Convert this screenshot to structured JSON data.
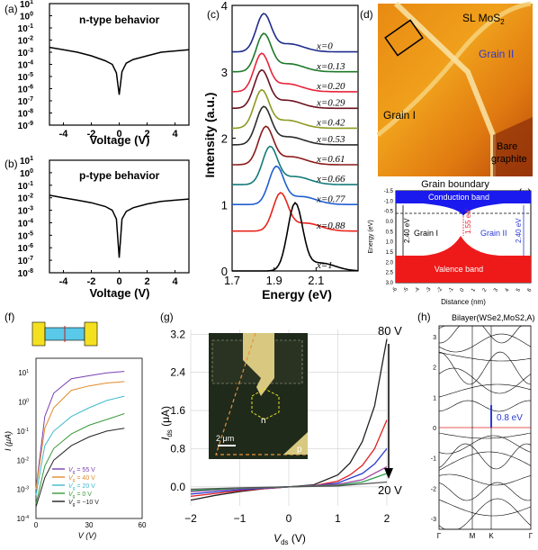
{
  "panels": {
    "a": {
      "label": "(a)",
      "title": "n-type behavior",
      "xlabel": "Voltage (V)",
      "xticks": [
        "-4",
        "-2",
        "0",
        "2",
        "4"
      ],
      "yticks": [
        "10",
        "10",
        "10",
        "10",
        "10",
        "10",
        "10",
        "10",
        "10",
        "10",
        "10"
      ],
      "yexp": [
        "1",
        "0",
        "-1",
        "-2",
        "-3",
        "-4",
        "-5",
        "-6",
        "-7",
        "-8",
        "-9"
      ]
    },
    "b": {
      "label": "(b)",
      "title": "p-type behavior",
      "xlabel": "Voltage (V)",
      "xticks": [
        "-4",
        "-2",
        "0",
        "2",
        "4"
      ],
      "yticks": [
        "10",
        "10",
        "10",
        "10",
        "10",
        "10",
        "10",
        "10",
        "10",
        "10"
      ],
      "yexp": [
        "1",
        "0",
        "-1",
        "-2",
        "-3",
        "-4",
        "-5",
        "-6",
        "-7",
        "-8"
      ]
    },
    "c": {
      "label": "(c)",
      "ylabel": "Intensity (a.u.)",
      "xlabel": "Energy (eV)",
      "xticks": [
        "1.7",
        "1.9",
        "2.1"
      ],
      "yticks": [
        "0",
        "1",
        "2",
        "3",
        "4"
      ],
      "curves": [
        {
          "name": "x=0",
          "color": "#1f2b8c"
        },
        {
          "name": "x=0.13",
          "color": "#1e7a2a"
        },
        {
          "name": "x=0.20",
          "color": "#e8253a"
        },
        {
          "name": "x=0.29",
          "color": "#6b1220"
        },
        {
          "name": "x=0.42",
          "color": "#8e9a20"
        },
        {
          "name": "x=0.53",
          "color": "#2c2c2c"
        },
        {
          "name": "x=0.61",
          "color": "#8a1a1a"
        },
        {
          "name": "x=0.66",
          "color": "#147a7a"
        },
        {
          "name": "x=0.77",
          "color": "#1e5fd0"
        },
        {
          "name": "x=0.88",
          "color": "#e8251a"
        },
        {
          "name": "x=1",
          "color": "#000000"
        }
      ]
    },
    "d": {
      "label": "(d)",
      "top_label": "SL MoS",
      "top_sub": "2",
      "grain2": "Grain II",
      "grain1": "Grain I",
      "bare1": "Bare",
      "bare2": "graphite"
    },
    "e": {
      "label": "(e)",
      "title": "Grain boundary",
      "conduction": "Conduction band",
      "valence": "Valence band",
      "grain1": "Grain I",
      "grain2": "Grain II",
      "gap_left": "2.40 eV",
      "gap_right": "2.40 eV",
      "mid_gap": "1.55 eV",
      "ylabel": "Energy (eV)",
      "xlabel": "Distance (nm)",
      "yticks": [
        "-1.5",
        "-1.0",
        "-0.5",
        "0.0",
        "0.5",
        "1.0",
        "1.5",
        "2.0",
        "2.5",
        "3.0"
      ],
      "xticks": [
        "-6",
        "-5",
        "-4",
        "-3",
        "-2",
        "-1",
        "0",
        "1",
        "2",
        "3",
        "4",
        "5",
        "6"
      ]
    },
    "f": {
      "label": "(f)",
      "ylabel": "I (μA)",
      "xlabel": "V (V)",
      "xticks": [
        "0",
        "30",
        "60"
      ],
      "yticks": [
        "10",
        "10",
        "10",
        "10",
        "10",
        "10"
      ],
      "yexp": [
        "1",
        "0",
        "-1",
        "-2",
        "-3",
        "-4"
      ],
      "legend": [
        {
          "text": "V",
          "sub": "g",
          "rest": " = 55 V",
          "color": "#7a3fb0"
        },
        {
          "text": "V",
          "sub": "g",
          "rest": " = 40 V",
          "color": "#e08a2a"
        },
        {
          "text": "V",
          "sub": "g",
          "rest": " = 20 V",
          "color": "#3fb8d0"
        },
        {
          "text": "V",
          "sub": "g",
          "rest": " = 0 V",
          "color": "#3a9a3a"
        },
        {
          "text": "V",
          "sub": "g",
          "rest": " = −10 V",
          "color": "#222222"
        }
      ]
    },
    "g": {
      "label": "(g)",
      "ylabel_main": "I",
      "ylabel_sub": "ds",
      "ylabel_unit": " (μA)",
      "xlabel_main": "V",
      "xlabel_sub": "ds",
      "xlabel_unit": " (V)",
      "yticks": [
        "0.0",
        "0.8",
        "1.6",
        "2.4",
        "3.2"
      ],
      "xticks": [
        "−2",
        "−1",
        "0",
        "1",
        "2"
      ],
      "top_arrow": "80 V",
      "bottom_arrow": "20 V",
      "scale": "2 μm",
      "n": "n",
      "p": "p"
    },
    "h": {
      "label": "(h)",
      "title": "Bilayer(WSe2,MoS2,A)",
      "gap": "0.8 eV",
      "yticks": [
        "3",
        "2",
        "1",
        "0",
        "-1",
        "-2",
        "-3"
      ],
      "kpts": [
        "Γ",
        "M",
        "K",
        "Γ"
      ]
    }
  },
  "chart_data": [
    {
      "type": "line",
      "panel": "a",
      "title": "n-type behavior",
      "xlabel": "Voltage (V)",
      "xlim": [
        -5,
        5
      ],
      "ylim_log10": [
        -9,
        1
      ],
      "x": [
        -5,
        -4,
        -3,
        -2,
        -1,
        -0.5,
        -0.2,
        0,
        0.2,
        0.5,
        1,
        2,
        3,
        4,
        5
      ],
      "log10_y": [
        -2.6,
        -2.8,
        -3.0,
        -3.3,
        -3.7,
        -4.0,
        -4.7,
        -6.5,
        -4.6,
        -3.9,
        -3.6,
        -3.3,
        -3.0,
        -2.9,
        -2.8
      ]
    },
    {
      "type": "line",
      "panel": "b",
      "title": "p-type behavior",
      "xlabel": "Voltage (V)",
      "xlim": [
        -5,
        5
      ],
      "ylim_log10": [
        -8,
        1
      ],
      "x": [
        -5,
        -4,
        -3,
        -2,
        -1,
        -0.5,
        -0.2,
        0,
        0.2,
        0.5,
        1,
        2,
        3,
        4,
        5
      ],
      "log10_y": [
        -1.8,
        -2.0,
        -2.2,
        -2.4,
        -2.7,
        -3.0,
        -3.7,
        -6.8,
        -3.7,
        -3.1,
        -2.8,
        -2.5,
        -2.3,
        -2.2,
        -2.1
      ]
    },
    {
      "type": "line",
      "panel": "c",
      "xlabel": "Energy (eV)",
      "ylabel": "Intensity (a.u.)",
      "xlim": [
        1.7,
        2.3
      ],
      "ylim": [
        0,
        4
      ],
      "series": [
        {
          "name": "x=0",
          "peak": 1.85,
          "offset": 3.3
        },
        {
          "name": "x=0.13",
          "peak": 1.85,
          "offset": 3.0
        },
        {
          "name": "x=0.20",
          "peak": 1.84,
          "offset": 2.7
        },
        {
          "name": "x=0.29",
          "peak": 1.84,
          "offset": 2.45
        },
        {
          "name": "x=0.42",
          "peak": 1.84,
          "offset": 2.15
        },
        {
          "name": "x=0.53",
          "peak": 1.85,
          "offset": 1.9
        },
        {
          "name": "x=0.61",
          "peak": 1.86,
          "offset": 1.6
        },
        {
          "name": "x=0.66",
          "peak": 1.88,
          "offset": 1.3
        },
        {
          "name": "x=0.77",
          "peak": 1.91,
          "offset": 1.0
        },
        {
          "name": "x=0.88",
          "peak": 1.93,
          "offset": 0.6
        },
        {
          "name": "x=1",
          "peak": 2.0,
          "offset": 0.0
        }
      ]
    },
    {
      "type": "line",
      "panel": "f",
      "xlabel": "V (V)",
      "ylabel": "I (μA)",
      "xlim": [
        0,
        60
      ],
      "ylim_log10": [
        -4,
        1.5
      ],
      "series": [
        {
          "name": "Vg = 55 V",
          "x": [
            0,
            5,
            10,
            20,
            30,
            40,
            50
          ],
          "log10_y": [
            -3,
            -0.5,
            0.3,
            0.8,
            0.9,
            1.0,
            1.05
          ]
        },
        {
          "name": "Vg = 40 V",
          "x": [
            0,
            5,
            10,
            20,
            30,
            40,
            50
          ],
          "log10_y": [
            -3,
            -0.9,
            -0.2,
            0.4,
            0.55,
            0.65,
            0.7
          ]
        },
        {
          "name": "Vg = 20 V",
          "x": [
            0,
            5,
            10,
            20,
            30,
            40,
            50
          ],
          "log10_y": [
            -3.2,
            -1.5,
            -1.0,
            -0.5,
            -0.2,
            0.05,
            0.2
          ]
        },
        {
          "name": "Vg = 0 V",
          "x": [
            0,
            5,
            10,
            20,
            30,
            40,
            50
          ],
          "log10_y": [
            -3.5,
            -2.2,
            -1.6,
            -1.1,
            -0.8,
            -0.6,
            -0.4
          ]
        },
        {
          "name": "Vg = −10 V",
          "x": [
            0,
            5,
            10,
            20,
            30,
            40,
            50
          ],
          "log10_y": [
            -3.6,
            -2.6,
            -2.0,
            -1.5,
            -1.2,
            -1.0,
            -0.9
          ]
        }
      ]
    },
    {
      "type": "line",
      "panel": "g",
      "xlabel": "Vds (V)",
      "ylabel": "Ids (μA)",
      "xlim": [
        -2,
        2
      ],
      "ylim": [
        -0.4,
        3.3
      ],
      "series": [
        {
          "name": "80 V",
          "x": [
            -2,
            -1.5,
            -1,
            -0.5,
            0,
            0.5,
            1,
            1.25,
            1.5,
            1.75,
            2
          ],
          "y": [
            -0.28,
            -0.18,
            -0.1,
            -0.04,
            0,
            0.04,
            0.25,
            0.5,
            0.95,
            1.7,
            3.1
          ]
        },
        {
          "name": "red",
          "x": [
            -2,
            -1,
            0,
            0.5,
            1,
            1.25,
            1.5,
            1.75,
            2
          ],
          "y": [
            -0.2,
            -0.08,
            0,
            0.02,
            0.12,
            0.25,
            0.45,
            0.8,
            1.4
          ]
        },
        {
          "name": "blue",
          "x": [
            -2,
            -1,
            0,
            0.5,
            1,
            1.5,
            1.75,
            2
          ],
          "y": [
            -0.15,
            -0.06,
            0,
            0.02,
            0.08,
            0.28,
            0.48,
            0.8
          ]
        },
        {
          "name": "purple",
          "x": [
            -2,
            -1,
            0,
            1,
            1.5,
            2
          ],
          "y": [
            -0.1,
            -0.04,
            0,
            0.05,
            0.15,
            0.42
          ]
        },
        {
          "name": "green",
          "x": [
            -2,
            -1,
            0,
            1,
            1.5,
            2
          ],
          "y": [
            -0.08,
            -0.03,
            0,
            0.03,
            0.1,
            0.28
          ]
        },
        {
          "name": "20 V",
          "x": [
            -2,
            -1,
            0,
            1,
            2
          ],
          "y": [
            -0.05,
            -0.02,
            0,
            0.02,
            0.1
          ]
        }
      ]
    }
  ]
}
